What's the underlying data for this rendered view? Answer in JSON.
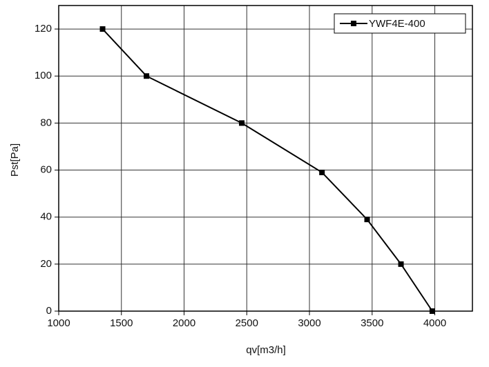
{
  "chart_data": {
    "type": "line",
    "x_label": "qv[m3/h]",
    "y_label": "Pst[Pa]",
    "x": [
      1350,
      1700,
      2460,
      3100,
      3460,
      3730,
      3980
    ],
    "series": [
      {
        "name": "YWF4E-400",
        "color": "#000000",
        "values": [
          120,
          100,
          80,
          59,
          39,
          20,
          0
        ]
      }
    ],
    "xlim": [
      1000,
      4300
    ],
    "xticks": [
      1000,
      1500,
      2000,
      2500,
      3000,
      3500,
      4000
    ],
    "ylim": [
      0,
      130
    ],
    "yticks": [
      0,
      20,
      40,
      60,
      80,
      100,
      120
    ],
    "grid": true,
    "legend": "upper-right"
  }
}
